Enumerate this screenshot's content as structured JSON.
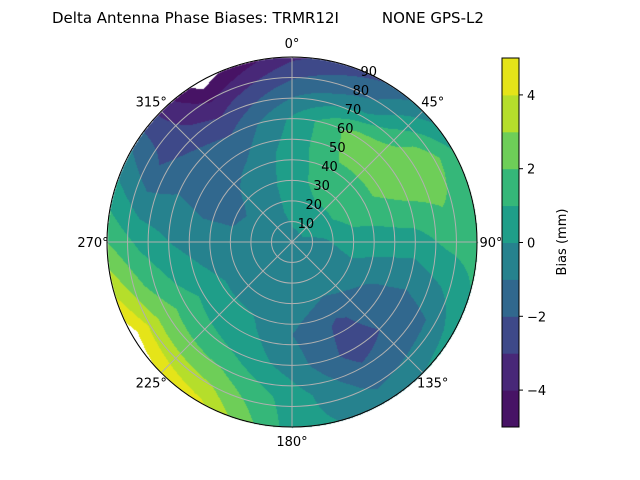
{
  "chart_data": {
    "type": "heatmap",
    "subtype": "polar-filled-contour",
    "title": "Delta Antenna Phase Biases: TRMR12I         NONE GPS-L2",
    "angular_direction": "clockwise",
    "angular_zero": "top",
    "angular_ticks": [
      "0°",
      "45°",
      "90°",
      "135°",
      "180°",
      "225°",
      "270°",
      "315°"
    ],
    "angular_tick_values": [
      0,
      45,
      90,
      135,
      180,
      225,
      270,
      315
    ],
    "radial_ticks": [
      "10",
      "20",
      "30",
      "40",
      "50",
      "60",
      "70",
      "80",
      "90"
    ],
    "radial_tick_values": [
      10,
      20,
      30,
      40,
      50,
      60,
      70,
      80,
      90
    ],
    "rlim": [
      0,
      90
    ],
    "grid": true,
    "azimuths": [
      0,
      30,
      60,
      90,
      120,
      150,
      180,
      210,
      240,
      270,
      300,
      330
    ],
    "radii": [
      0,
      15,
      30,
      45,
      60,
      75,
      90
    ],
    "values": [
      [
        -0.3,
        0.3,
        0.5,
        0.5,
        0.2,
        -1.5,
        -3.2
      ],
      [
        -0.3,
        0.5,
        1.5,
        2.0,
        2.5,
        -0.5,
        -2.0
      ],
      [
        -0.3,
        0.5,
        1.5,
        2.0,
        2.8,
        3.0,
        1.0
      ],
      [
        -0.3,
        -0.2,
        0.5,
        0.5,
        0.5,
        1.2,
        1.5
      ],
      [
        -0.3,
        -0.5,
        -0.5,
        -1.2,
        -1.5,
        -1.0,
        0.5
      ],
      [
        -0.3,
        -0.5,
        -1.0,
        -2.2,
        -2.5,
        -1.5,
        -0.5
      ],
      [
        -0.3,
        -0.5,
        -0.5,
        -1.0,
        -0.5,
        0.5,
        0.5
      ],
      [
        -0.3,
        -0.5,
        -0.5,
        0.3,
        1.0,
        2.5,
        4.2
      ],
      [
        -0.3,
        -0.5,
        -0.5,
        0.5,
        1.5,
        3.0,
        5.5
      ],
      [
        -0.3,
        -0.5,
        -0.8,
        -0.5,
        0.0,
        0.8,
        2.0
      ],
      [
        -0.3,
        -0.5,
        -1.2,
        -1.5,
        -1.3,
        -2.0,
        -1.0
      ],
      [
        -0.3,
        -0.3,
        -0.5,
        -1.0,
        -2.0,
        -3.5,
        -5.5
      ]
    ],
    "levels": [
      -5,
      -4,
      -3,
      -2,
      -1,
      0,
      1,
      2,
      3,
      4,
      5
    ],
    "colormap": "viridis",
    "level_colors": [
      "#471365",
      "#482878",
      "#3e4989",
      "#31688e",
      "#26828e",
      "#1f9e89",
      "#35b779",
      "#6ece58",
      "#b5de2b",
      "#e5e419"
    ],
    "out_of_range_color": "#ffffff",
    "colorbar": {
      "label": "Bias (mm)",
      "ticks": [
        "−4",
        "−2",
        "0",
        "2",
        "4"
      ],
      "tick_values": [
        -4,
        -2,
        0,
        2,
        4
      ],
      "range": [
        -5,
        5
      ]
    }
  }
}
